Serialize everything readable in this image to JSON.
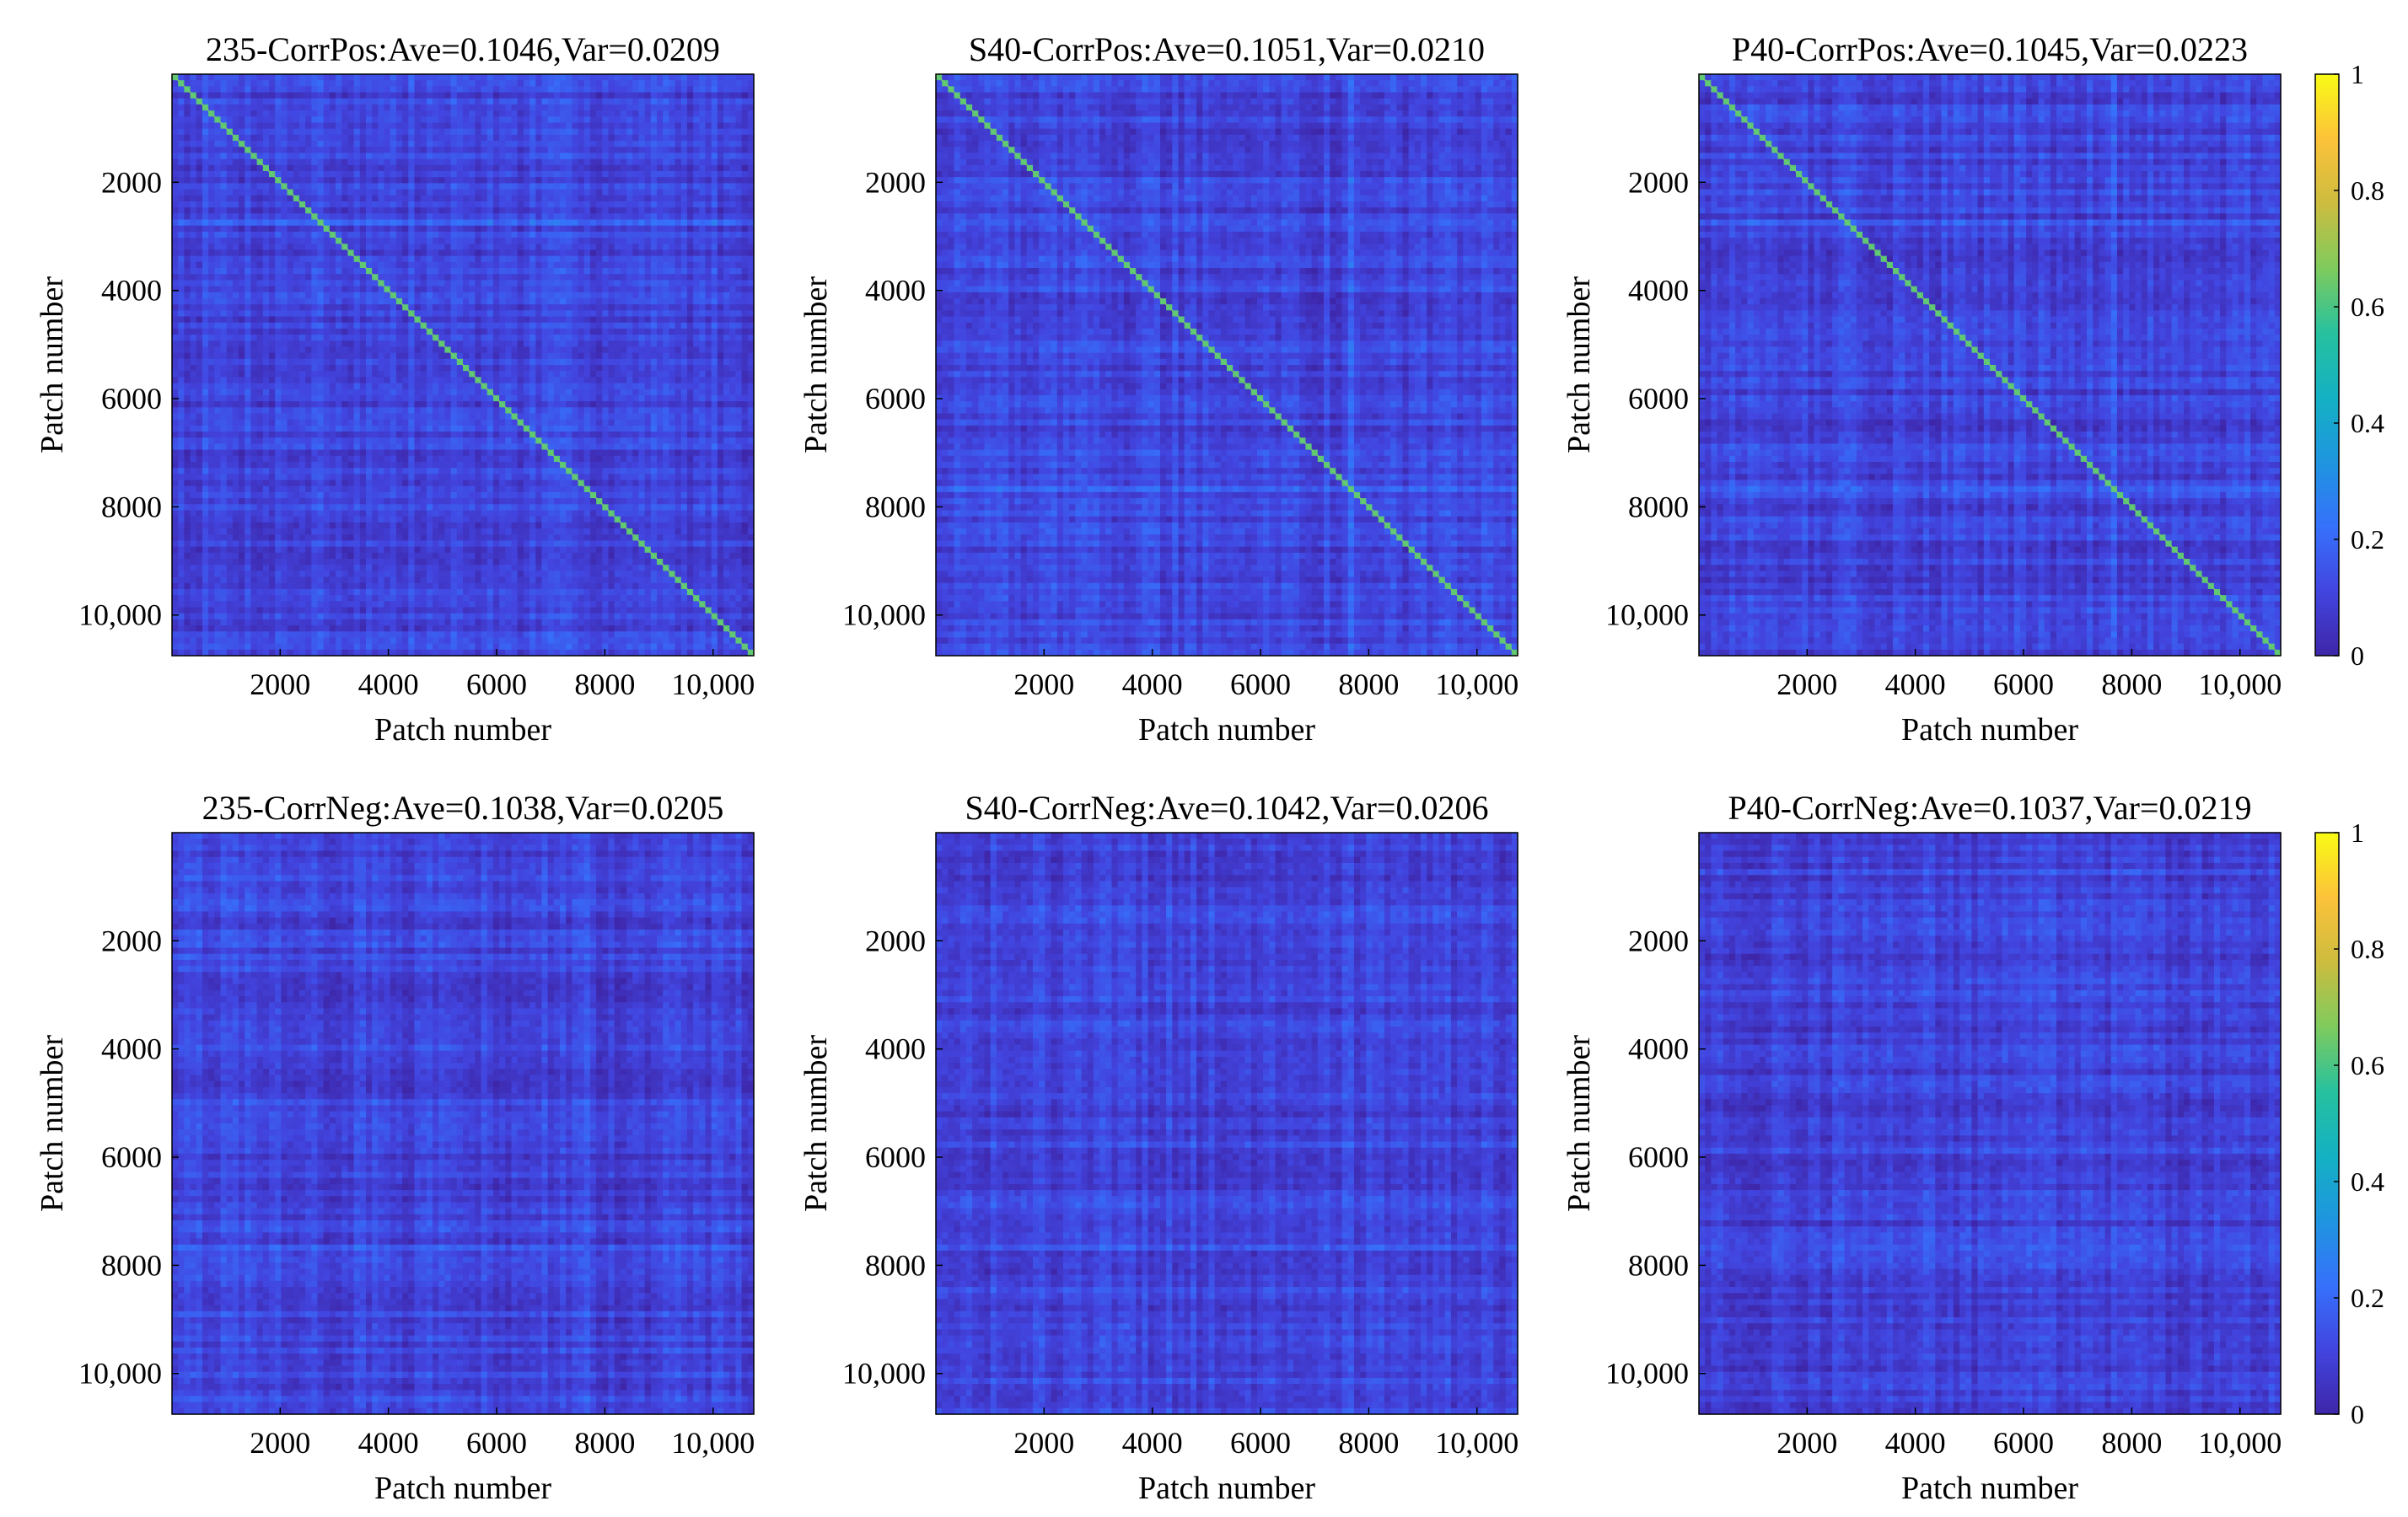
{
  "colormap": [
    "#3e26a8",
    "#4245e0",
    "#3671fb",
    "#1f95df",
    "#14b1c3",
    "#27c19e",
    "#7fcb5d",
    "#cdbc3f",
    "#fcc23a",
    "#f9fb15"
  ],
  "chart_data": [
    {
      "type": "heatmap",
      "title": "235-CorrPos:Ave=0.1046,Var=0.0209",
      "xlabel": "Patch number",
      "ylabel": "Patch number",
      "xlim": [
        1,
        10752
      ],
      "ylim": [
        1,
        10752
      ],
      "x_ticks": [
        {
          "v": 2000,
          "label": "2000"
        },
        {
          "v": 4000,
          "label": "4000"
        },
        {
          "v": 6000,
          "label": "6000"
        },
        {
          "v": 8000,
          "label": "8000"
        },
        {
          "v": 10000,
          "label": "10,000"
        }
      ],
      "y_ticks": [
        {
          "v": 2000,
          "label": "2000"
        },
        {
          "v": 4000,
          "label": "4000"
        },
        {
          "v": 6000,
          "label": "6000"
        },
        {
          "v": 8000,
          "label": "8000"
        },
        {
          "v": 10000,
          "label": "10,000"
        }
      ],
      "mean": 0.1046,
      "variance": 0.0209,
      "diagonal": true,
      "highlight_bands": [
        2700,
        7750
      ],
      "clim": [
        0,
        1
      ],
      "colorbar": false
    },
    {
      "type": "heatmap",
      "title": "S40-CorrPos:Ave=0.1051,Var=0.0210",
      "xlabel": "Patch number",
      "ylabel": "Patch number",
      "xlim": [
        1,
        10752
      ],
      "ylim": [
        1,
        10752
      ],
      "x_ticks": [
        {
          "v": 2000,
          "label": "2000"
        },
        {
          "v": 4000,
          "label": "4000"
        },
        {
          "v": 6000,
          "label": "6000"
        },
        {
          "v": 8000,
          "label": "8000"
        },
        {
          "v": 10000,
          "label": "10,000"
        }
      ],
      "y_ticks": [
        {
          "v": 2000,
          "label": "2000"
        },
        {
          "v": 4000,
          "label": "4000"
        },
        {
          "v": 6000,
          "label": "6000"
        },
        {
          "v": 8000,
          "label": "8000"
        },
        {
          "v": 10000,
          "label": "10,000"
        }
      ],
      "mean": 0.1051,
      "variance": 0.021,
      "diagonal": true,
      "highlight_bands": [
        2700,
        7750
      ],
      "clim": [
        0,
        1
      ],
      "colorbar": false
    },
    {
      "type": "heatmap",
      "title": "P40-CorrPos:Ave=0.1045,Var=0.0223",
      "xlabel": "Patch number",
      "ylabel": "Patch number",
      "xlim": [
        1,
        10752
      ],
      "ylim": [
        1,
        10752
      ],
      "x_ticks": [
        {
          "v": 2000,
          "label": "2000"
        },
        {
          "v": 4000,
          "label": "4000"
        },
        {
          "v": 6000,
          "label": "6000"
        },
        {
          "v": 8000,
          "label": "8000"
        },
        {
          "v": 10000,
          "label": "10,000"
        }
      ],
      "y_ticks": [
        {
          "v": 2000,
          "label": "2000"
        },
        {
          "v": 4000,
          "label": "4000"
        },
        {
          "v": 6000,
          "label": "6000"
        },
        {
          "v": 8000,
          "label": "8000"
        },
        {
          "v": 10000,
          "label": "10,000"
        }
      ],
      "mean": 0.1045,
      "variance": 0.0223,
      "diagonal": true,
      "highlight_bands": [
        2700,
        7750
      ],
      "clim": [
        0,
        1
      ],
      "colorbar": true,
      "colorbar_ticks": [
        {
          "v": 0,
          "label": "0"
        },
        {
          "v": 0.2,
          "label": "0.2"
        },
        {
          "v": 0.4,
          "label": "0.4"
        },
        {
          "v": 0.6,
          "label": "0.6"
        },
        {
          "v": 0.8,
          "label": "0.8"
        },
        {
          "v": 1,
          "label": "1"
        }
      ]
    },
    {
      "type": "heatmap",
      "title": "235-CorrNeg:Ave=0.1038,Var=0.0205",
      "xlabel": "Patch number",
      "ylabel": "Patch number",
      "xlim": [
        1,
        10752
      ],
      "ylim": [
        1,
        10752
      ],
      "x_ticks": [
        {
          "v": 2000,
          "label": "2000"
        },
        {
          "v": 4000,
          "label": "4000"
        },
        {
          "v": 6000,
          "label": "6000"
        },
        {
          "v": 8000,
          "label": "8000"
        },
        {
          "v": 10000,
          "label": "10,000"
        }
      ],
      "y_ticks": [
        {
          "v": 2000,
          "label": "2000"
        },
        {
          "v": 4000,
          "label": "4000"
        },
        {
          "v": 6000,
          "label": "6000"
        },
        {
          "v": 8000,
          "label": "8000"
        },
        {
          "v": 10000,
          "label": "10,000"
        }
      ],
      "mean": 0.1038,
      "variance": 0.0205,
      "diagonal": false,
      "highlight_bands": [
        7750
      ],
      "clim": [
        0,
        1
      ],
      "colorbar": false
    },
    {
      "type": "heatmap",
      "title": "S40-CorrNeg:Ave=0.1042,Var=0.0206",
      "xlabel": "Patch number",
      "ylabel": "Patch number",
      "xlim": [
        1,
        10752
      ],
      "ylim": [
        1,
        10752
      ],
      "x_ticks": [
        {
          "v": 2000,
          "label": "2000"
        },
        {
          "v": 4000,
          "label": "4000"
        },
        {
          "v": 6000,
          "label": "6000"
        },
        {
          "v": 8000,
          "label": "8000"
        },
        {
          "v": 10000,
          "label": "10,000"
        }
      ],
      "y_ticks": [
        {
          "v": 2000,
          "label": "2000"
        },
        {
          "v": 4000,
          "label": "4000"
        },
        {
          "v": 6000,
          "label": "6000"
        },
        {
          "v": 8000,
          "label": "8000"
        },
        {
          "v": 10000,
          "label": "10,000"
        }
      ],
      "mean": 0.1042,
      "variance": 0.0206,
      "diagonal": false,
      "highlight_bands": [
        7750
      ],
      "clim": [
        0,
        1
      ],
      "colorbar": false
    },
    {
      "type": "heatmap",
      "title": "P40-CorrNeg:Ave=0.1037,Var=0.0219",
      "xlabel": "Patch number",
      "ylabel": "Patch number",
      "xlim": [
        1,
        10752
      ],
      "ylim": [
        1,
        10752
      ],
      "x_ticks": [
        {
          "v": 2000,
          "label": "2000"
        },
        {
          "v": 4000,
          "label": "4000"
        },
        {
          "v": 6000,
          "label": "6000"
        },
        {
          "v": 8000,
          "label": "8000"
        },
        {
          "v": 10000,
          "label": "10,000"
        }
      ],
      "y_ticks": [
        {
          "v": 2000,
          "label": "2000"
        },
        {
          "v": 4000,
          "label": "4000"
        },
        {
          "v": 6000,
          "label": "6000"
        },
        {
          "v": 8000,
          "label": "8000"
        },
        {
          "v": 10000,
          "label": "10,000"
        }
      ],
      "mean": 0.1037,
      "variance": 0.0219,
      "diagonal": false,
      "highlight_bands": [
        7750
      ],
      "clim": [
        0,
        1
      ],
      "colorbar": true,
      "colorbar_ticks": [
        {
          "v": 0,
          "label": "0"
        },
        {
          "v": 0.2,
          "label": "0.2"
        },
        {
          "v": 0.4,
          "label": "0.4"
        },
        {
          "v": 0.6,
          "label": "0.6"
        },
        {
          "v": 0.8,
          "label": "0.8"
        },
        {
          "v": 1,
          "label": "1"
        }
      ]
    }
  ]
}
